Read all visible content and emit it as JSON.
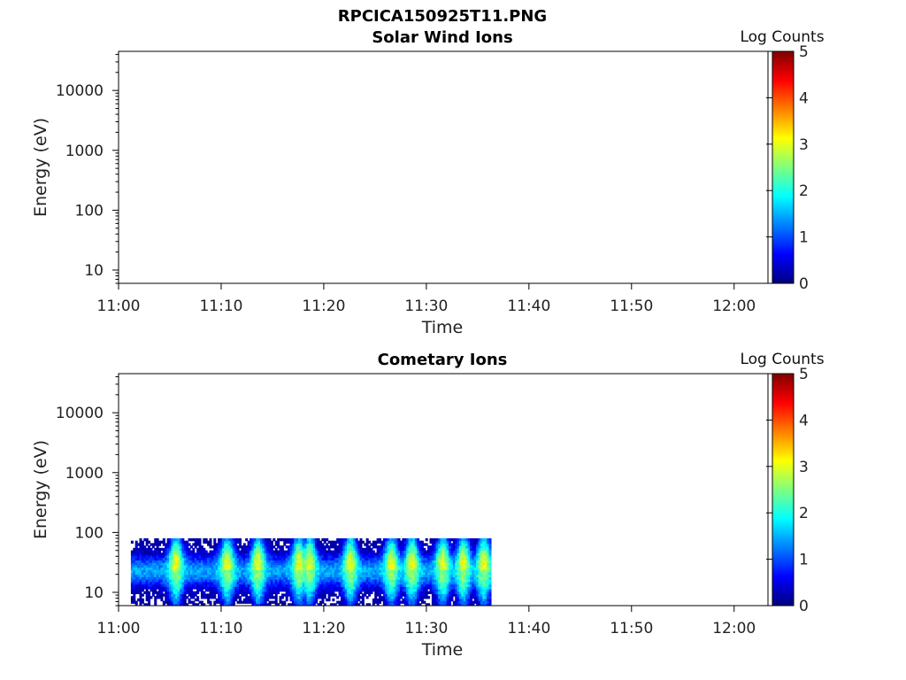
{
  "figure": {
    "title": "RPCICA150925T11.PNG"
  },
  "colors": {
    "colormap": [
      "#00007f",
      "#0000ff",
      "#007fff",
      "#00ffff",
      "#7fff7f",
      "#ffff00",
      "#ff7f00",
      "#ff0000",
      "#7f0000"
    ]
  },
  "chart_data": [
    {
      "type": "heatmap",
      "title": "Solar Wind Ions",
      "xlabel": "Time",
      "ylabel": "Energy (eV)",
      "x_ticks": [
        "11:00",
        "11:10",
        "11:20",
        "11:30",
        "11:40",
        "11:50",
        "12:00"
      ],
      "xlim_minutes_from_1100": [
        0,
        63.3
      ],
      "y_ticks": [
        "10",
        "100",
        "1000",
        "10000"
      ],
      "y_scale": "log",
      "ylim": [
        6,
        45000
      ],
      "colorbar": {
        "label": "Log Counts",
        "ticks": [
          "0",
          "1",
          "2",
          "3",
          "4",
          "5"
        ],
        "range": [
          0,
          5
        ]
      },
      "data": []
    },
    {
      "type": "heatmap",
      "title": "Cometary Ions",
      "xlabel": "Time",
      "ylabel": "Energy (eV)",
      "x_ticks": [
        "11:00",
        "11:10",
        "11:20",
        "11:30",
        "11:40",
        "11:50",
        "12:00"
      ],
      "xlim_minutes_from_1100": [
        0,
        63.3
      ],
      "y_ticks": [
        "10",
        "100",
        "1000",
        "10000"
      ],
      "y_scale": "log",
      "ylim": [
        6,
        45000
      ],
      "colorbar": {
        "label": "Log Counts",
        "ticks": [
          "0",
          "1",
          "2",
          "3",
          "4",
          "5"
        ],
        "range": [
          0,
          5
        ]
      },
      "data": {
        "time_range_minutes": [
          1.2,
          36.3
        ],
        "energy_range_eV": [
          6,
          80
        ],
        "peak_energy_eV": 22,
        "bright_bursts_minutes": [
          5.5,
          10.5,
          13.5,
          17.5,
          18.5,
          22.5,
          26.5,
          28.5,
          31.5,
          33.5,
          35.5
        ],
        "peak_log_counts": 2.6
      }
    }
  ]
}
